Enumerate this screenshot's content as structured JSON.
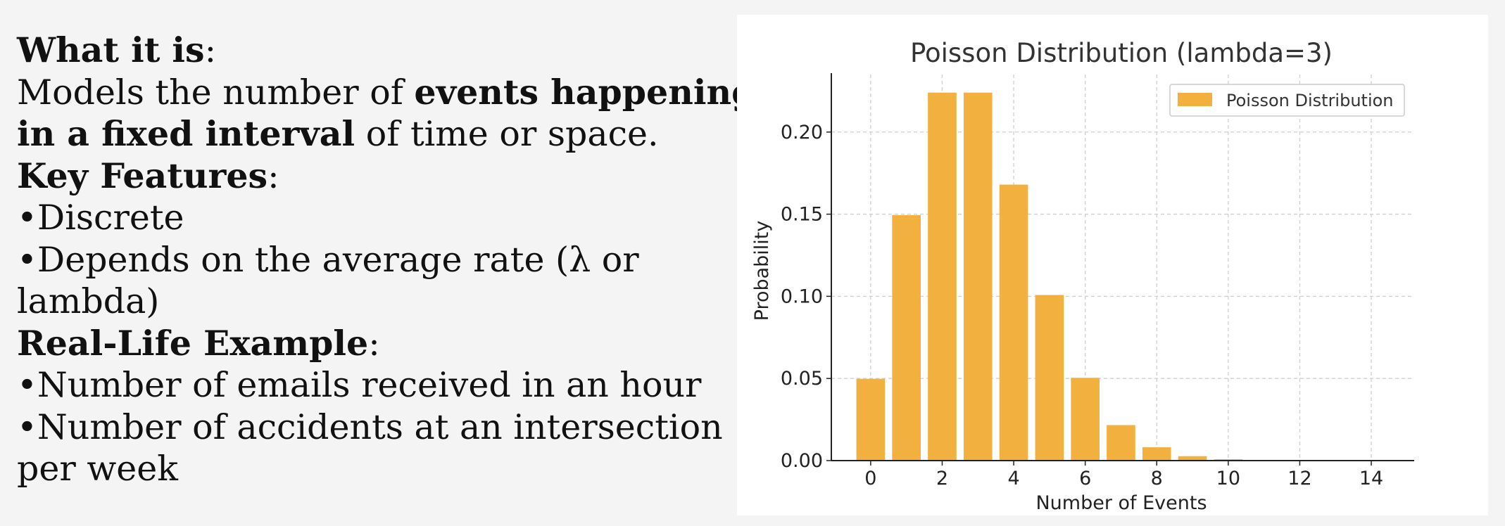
{
  "text": {
    "what_heading": "What it is",
    "colon": ":",
    "what_line1_plain": "Models the number of ",
    "what_line1_bold": "events happening",
    "what_line2_bold": "in a fixed interval",
    "what_line2_plain": " of time or space.",
    "features_heading": "Key Features",
    "feature1": "•Discrete",
    "feature2_line1": "•Depends on the average rate (λ or",
    "feature2_line2": "lambda)",
    "example_heading": "Real-Life Example",
    "example1": "•Number of emails received in an hour",
    "example2_line1": "•Number of accidents at an intersection",
    "example2_line2": "per week"
  },
  "chart_data": {
    "type": "bar",
    "title": "Poisson Distribution (lambda=3)",
    "xlabel": "Number of Events",
    "ylabel": "Probability",
    "legend": "Poisson Distribution",
    "legend_position": "top-right",
    "grid": true,
    "bar_color": "#f2b13e",
    "x": [
      0,
      1,
      2,
      3,
      4,
      5,
      6,
      7,
      8,
      9,
      10,
      11,
      12,
      13,
      14,
      15
    ],
    "values": [
      0.0498,
      0.1494,
      0.224,
      0.224,
      0.168,
      0.1008,
      0.0504,
      0.0216,
      0.0081,
      0.0027,
      0.0008,
      0.0002,
      6e-05,
      1e-05,
      3e-06,
      7e-07
    ],
    "xticks": [
      0,
      2,
      4,
      6,
      8,
      10,
      12,
      14
    ],
    "yticks": [
      0.0,
      0.05,
      0.1,
      0.15,
      0.2
    ],
    "ytick_labels": [
      "0.00",
      "0.05",
      "0.10",
      "0.15",
      "0.20"
    ],
    "xlim": [
      -1.1,
      15.2
    ],
    "ylim": [
      0,
      0.235
    ]
  }
}
